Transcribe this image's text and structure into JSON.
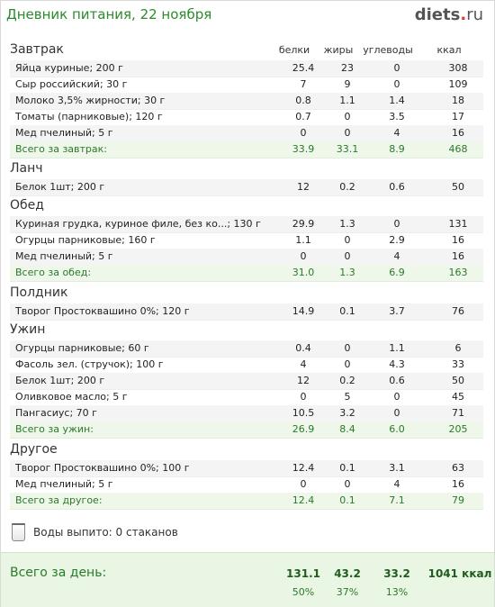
{
  "header": {
    "title": "Дневник питания, 22 ноября",
    "brand": {
      "main": "diets",
      "tld": "ru"
    }
  },
  "columns": {
    "protein": "белки",
    "fat": "жиры",
    "carbs": "углеводы",
    "kcal": "ккал"
  },
  "sections": [
    {
      "title": "Завтрак",
      "items": [
        {
          "name": "Яйца куриные; 200 г",
          "p": "25.4",
          "f": "23",
          "c": "0",
          "k": "308"
        },
        {
          "name": "Сыр российский; 30 г",
          "p": "7",
          "f": "9",
          "c": "0",
          "k": "109"
        },
        {
          "name": "Молоко 3,5% жирности; 30 г",
          "p": "0.8",
          "f": "1.1",
          "c": "1.4",
          "k": "18"
        },
        {
          "name": "Томаты (парниковые); 120 г",
          "p": "0.7",
          "f": "0",
          "c": "3.5",
          "k": "17"
        },
        {
          "name": "Мед пчелиный; 5 г",
          "p": "0",
          "f": "0",
          "c": "4",
          "k": "16"
        }
      ],
      "total": {
        "name": "Всего за завтрак:",
        "p": "33.9",
        "f": "33.1",
        "c": "8.9",
        "k": "468"
      }
    },
    {
      "title": "Ланч",
      "items": [
        {
          "name": "Белок 1шт; 200 г",
          "p": "12",
          "f": "0.2",
          "c": "0.6",
          "k": "50"
        }
      ]
    },
    {
      "title": "Обед",
      "items": [
        {
          "name": "Куриная грудка, куриное филе, без ко...; 130 г",
          "p": "29.9",
          "f": "1.3",
          "c": "0",
          "k": "131"
        },
        {
          "name": "Огурцы парниковые; 160 г",
          "p": "1.1",
          "f": "0",
          "c": "2.9",
          "k": "16"
        },
        {
          "name": "Мед пчелиный; 5 г",
          "p": "0",
          "f": "0",
          "c": "4",
          "k": "16"
        }
      ],
      "total": {
        "name": "Всего за обед:",
        "p": "31.0",
        "f": "1.3",
        "c": "6.9",
        "k": "163"
      }
    },
    {
      "title": "Полдник",
      "items": [
        {
          "name": "Творог Простоквашино 0%; 120 г",
          "p": "14.9",
          "f": "0.1",
          "c": "3.7",
          "k": "76"
        }
      ]
    },
    {
      "title": "Ужин",
      "items": [
        {
          "name": "Огурцы парниковые; 60 г",
          "p": "0.4",
          "f": "0",
          "c": "1.1",
          "k": "6"
        },
        {
          "name": "Фасоль зел. (стручок); 100 г",
          "p": "4",
          "f": "0",
          "c": "4.3",
          "k": "33"
        },
        {
          "name": "Белок 1шт; 200 г",
          "p": "12",
          "f": "0.2",
          "c": "0.6",
          "k": "50"
        },
        {
          "name": "Оливковое масло; 5 г",
          "p": "0",
          "f": "5",
          "c": "0",
          "k": "45"
        },
        {
          "name": "Пангасиус; 70 г",
          "p": "10.5",
          "f": "3.2",
          "c": "0",
          "k": "71"
        }
      ],
      "total": {
        "name": "Всего за ужин:",
        "p": "26.9",
        "f": "8.4",
        "c": "6.0",
        "k": "205"
      }
    },
    {
      "title": "Другое",
      "items": [
        {
          "name": "Творог Простоквашино 0%; 100 г",
          "p": "12.4",
          "f": "0.1",
          "c": "3.1",
          "k": "63"
        },
        {
          "name": "Мед пчелиный; 5 г",
          "p": "0",
          "f": "0",
          "c": "4",
          "k": "16"
        }
      ],
      "total": {
        "name": "Всего за другое:",
        "p": "12.4",
        "f": "0.1",
        "c": "7.1",
        "k": "79"
      }
    }
  ],
  "water": {
    "label": "Воды выпито: 0 стаканов",
    "icon": "glass-icon"
  },
  "day_total": {
    "label": "Всего за день:",
    "protein": "131.1",
    "fat": "43.2",
    "carbs": "33.2",
    "kcal": "1041 ккал",
    "protein_pct": "50%",
    "fat_pct": "37%",
    "carbs_pct": "13%"
  },
  "colors": {
    "accent_green": "#2d8a2d",
    "total_row_bg": "#eef7ea",
    "brand_dot": "#e23b2b"
  }
}
